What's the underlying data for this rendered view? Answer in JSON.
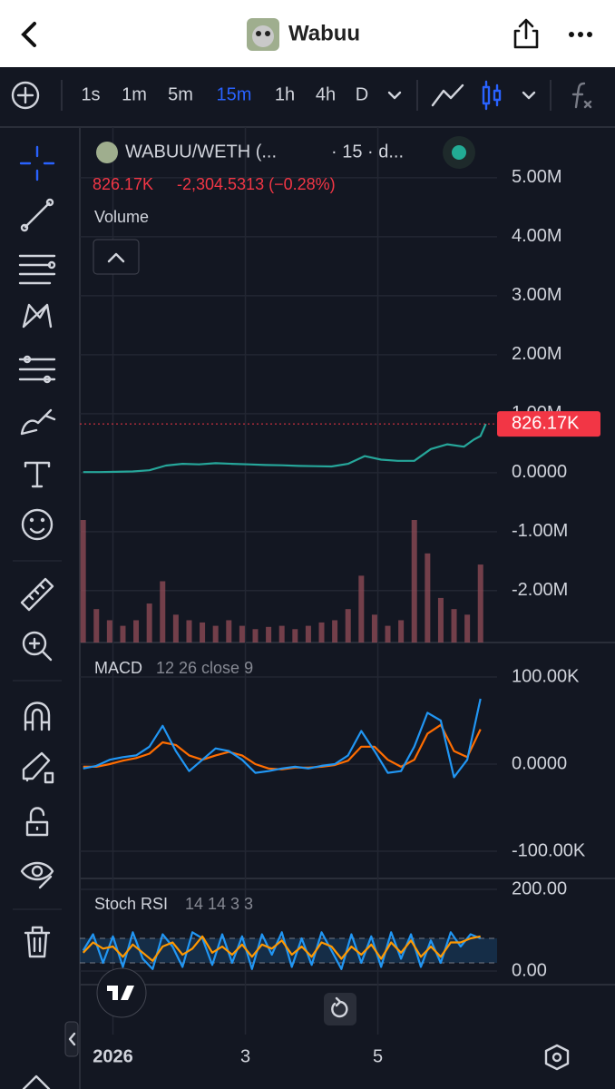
{
  "header": {
    "title": "Wabuu"
  },
  "toolbar": {
    "intervals": [
      "1s",
      "1m",
      "5m",
      "15m",
      "1h",
      "4h",
      "D"
    ],
    "active_interval": 3,
    "active_color": "#2962ff"
  },
  "chart_data": [
    {
      "type": "line",
      "symbol": "WABUU/WETH (...",
      "detail": "· 15 · d...",
      "change": "-2,304.5313 (−0.28%)",
      "volume_label": "Volume",
      "last_price": {
        "value": 826170,
        "label": "826.17K"
      },
      "color": "#26a69a",
      "grid": true,
      "x": [
        0.55,
        0.8,
        1.05,
        1.3,
        1.55,
        1.8,
        2.05,
        2.3,
        2.55,
        2.8,
        3.05,
        3.3,
        3.55,
        3.8,
        4.05,
        4.3,
        4.55,
        4.8,
        5.05,
        5.3,
        5.55,
        5.8,
        6.05,
        6.3,
        6.45,
        6.55,
        6.63
      ],
      "values": [
        10000,
        10000,
        15000,
        20000,
        40000,
        120000,
        150000,
        140000,
        160000,
        150000,
        140000,
        130000,
        125000,
        115000,
        110000,
        105000,
        150000,
        280000,
        220000,
        200000,
        200000,
        400000,
        480000,
        440000,
        560000,
        620000,
        826170
      ],
      "xlim": [
        0.5,
        6.8
      ],
      "ylim": [
        -2880000,
        5860000
      ],
      "xticks": [
        {
          "value": 1,
          "label": "2026"
        },
        3,
        5
      ],
      "yticks": [
        {
          "value": 5000000,
          "label": "5.00M"
        },
        {
          "value": 4000000,
          "label": "4.00M"
        },
        {
          "value": 3000000,
          "label": "3.00M"
        },
        {
          "value": 2000000,
          "label": "2.00M"
        },
        {
          "value": 1000000,
          "label": "1.00M"
        },
        {
          "value": 0,
          "label": "0.0000"
        },
        {
          "value": -1000000,
          "label": "-1.00M"
        },
        {
          "value": -2000000,
          "label": "-2.00M"
        }
      ],
      "volume": {
        "color": "#8c4a55",
        "x": [
          0.55,
          0.75,
          0.95,
          1.15,
          1.35,
          1.55,
          1.75,
          1.95,
          2.15,
          2.35,
          2.55,
          2.75,
          2.95,
          3.15,
          3.35,
          3.55,
          3.75,
          3.95,
          4.15,
          4.35,
          4.55,
          4.75,
          4.95,
          5.15,
          5.35,
          5.55,
          5.75,
          5.95,
          6.15,
          6.35,
          6.55
        ],
        "values": [
          110,
          30,
          20,
          15,
          20,
          35,
          55,
          25,
          20,
          18,
          15,
          20,
          15,
          12,
          14,
          15,
          12,
          15,
          18,
          20,
          30,
          60,
          25,
          15,
          20,
          110,
          80,
          40,
          30,
          25,
          70
        ]
      }
    },
    {
      "type": "macd",
      "title": "MACD",
      "params": "12 26 close 9",
      "ylim": [
        -131250,
        139580
      ],
      "yticks": [
        {
          "value": 100000,
          "label": "100.00K"
        },
        {
          "value": 0,
          "label": "0.0000"
        },
        {
          "value": -100000,
          "label": "-100.00K"
        }
      ],
      "x": [
        0.55,
        0.75,
        0.95,
        1.15,
        1.35,
        1.55,
        1.75,
        1.95,
        2.15,
        2.35,
        2.55,
        2.75,
        2.95,
        3.15,
        3.35,
        3.55,
        3.75,
        3.95,
        4.15,
        4.35,
        4.55,
        4.75,
        4.95,
        5.15,
        5.35,
        5.55,
        5.75,
        5.95,
        6.15,
        6.35,
        6.55
      ],
      "macd": {
        "color": "#2196f3",
        "values": [
          -5000,
          -2000,
          5000,
          8000,
          10000,
          20000,
          44000,
          15000,
          -8000,
          5000,
          18000,
          15000,
          5000,
          -10000,
          -8000,
          -5000,
          -3000,
          -5000,
          -2000,
          0,
          10000,
          38000,
          15000,
          -10000,
          -8000,
          20000,
          59000,
          50000,
          -15000,
          5000,
          75000
        ]
      },
      "signal": {
        "color": "#ff6d00",
        "values": [
          -3000,
          -3000,
          0,
          4000,
          7000,
          12000,
          25000,
          22000,
          10000,
          5000,
          10000,
          14000,
          10000,
          0,
          -5000,
          -6000,
          -4000,
          -4000,
          -3000,
          -1000,
          4000,
          20000,
          20000,
          5000,
          -3000,
          5000,
          35000,
          45000,
          15000,
          8000,
          40000
        ]
      }
    },
    {
      "type": "stoch",
      "title": "Stoch RSI",
      "params": "14 14 3 3",
      "ylim": [
        -33.3,
        226.7
      ],
      "yticks": [
        {
          "value": 200,
          "label": "200.00"
        },
        {
          "value": 0,
          "label": "0.00"
        }
      ],
      "bands": [
        20,
        80
      ],
      "x": [
        0.55,
        0.7,
        0.85,
        1.0,
        1.15,
        1.3,
        1.45,
        1.6,
        1.75,
        1.9,
        2.05,
        2.2,
        2.35,
        2.5,
        2.65,
        2.8,
        2.95,
        3.1,
        3.25,
        3.4,
        3.55,
        3.7,
        3.85,
        4.0,
        4.15,
        4.3,
        4.45,
        4.6,
        4.75,
        4.9,
        5.05,
        5.2,
        5.35,
        5.5,
        5.65,
        5.8,
        5.95,
        6.1,
        6.25,
        6.4,
        6.55
      ],
      "k": {
        "color": "#2196f3",
        "values": [
          50,
          90,
          20,
          85,
          10,
          95,
          30,
          5,
          90,
          60,
          10,
          95,
          80,
          15,
          90,
          20,
          85,
          5,
          90,
          40,
          95,
          10,
          80,
          15,
          95,
          50,
          5,
          90,
          20,
          85,
          10,
          95,
          30,
          90,
          10,
          75,
          20,
          95,
          60,
          90,
          80
        ]
      },
      "d": {
        "color": "#ff9800",
        "values": [
          45,
          70,
          55,
          60,
          35,
          65,
          45,
          25,
          60,
          70,
          40,
          55,
          85,
          45,
          60,
          40,
          65,
          35,
          65,
          55,
          75,
          40,
          60,
          35,
          70,
          60,
          30,
          60,
          40,
          65,
          30,
          70,
          45,
          75,
          35,
          60,
          35,
          70,
          70,
          80,
          85
        ]
      }
    }
  ]
}
